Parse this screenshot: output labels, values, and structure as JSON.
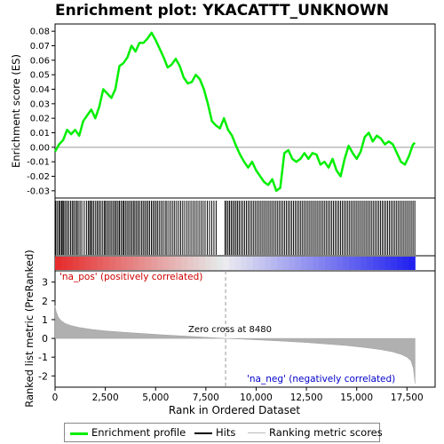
{
  "title": "Enrichment plot: YKACATTT_UNKNOWN",
  "colors": {
    "profile": "#00ee00",
    "hits": "#000000",
    "metric": "#aaaaaa",
    "pos_label": "#cc0000",
    "neg_label": "#0000cc",
    "zero_line": "#999999"
  },
  "chart_data": [
    {
      "type": "line",
      "name": "enrichment-profile",
      "ylabel": "Enrichment score (ES)",
      "ylim": [
        -0.035,
        0.085
      ],
      "xlim": [
        0,
        18900
      ],
      "yticks": [
        -0.03,
        -0.02,
        -0.01,
        0.0,
        0.01,
        0.02,
        0.03,
        0.04,
        0.05,
        0.06,
        0.07,
        0.08
      ],
      "ytick_labels": [
        "-0.03",
        "-0.02",
        "-0.01",
        "0.00",
        "0.01",
        "0.02",
        "0.03",
        "0.04",
        "0.05",
        "0.06",
        "0.07",
        "0.08"
      ],
      "x": [
        0,
        200,
        400,
        600,
        800,
        1000,
        1200,
        1400,
        1600,
        1800,
        2000,
        2200,
        2400,
        2600,
        2800,
        3000,
        3200,
        3400,
        3600,
        3800,
        4000,
        4200,
        4400,
        4600,
        4800,
        5000,
        5200,
        5400,
        5600,
        5800,
        6000,
        6200,
        6400,
        6600,
        6800,
        7000,
        7200,
        7400,
        7600,
        7800,
        8000,
        8200,
        8400,
        8600,
        8800,
        9000,
        9200,
        9400,
        9600,
        9800,
        10000,
        10200,
        10400,
        10600,
        10800,
        11000,
        11200,
        11400,
        11600,
        11800,
        12000,
        12200,
        12400,
        12600,
        12800,
        13000,
        13200,
        13400,
        13600,
        13800,
        14000,
        14200,
        14400,
        14600,
        14800,
        15000,
        15200,
        15400,
        15600,
        15800,
        16000,
        16200,
        16400,
        16600,
        16800,
        17000,
        17200,
        17400,
        17600,
        17800,
        17900
      ],
      "y": [
        -0.003,
        0.002,
        0.005,
        0.012,
        0.009,
        0.012,
        0.008,
        0.018,
        0.022,
        0.026,
        0.02,
        0.028,
        0.04,
        0.037,
        0.034,
        0.04,
        0.056,
        0.058,
        0.062,
        0.07,
        0.066,
        0.072,
        0.072,
        0.075,
        0.079,
        0.074,
        0.068,
        0.062,
        0.055,
        0.057,
        0.061,
        0.056,
        0.048,
        0.044,
        0.045,
        0.05,
        0.047,
        0.04,
        0.03,
        0.018,
        0.015,
        0.013,
        0.02,
        0.012,
        0.008,
        0.001,
        -0.005,
        -0.01,
        -0.014,
        -0.01,
        -0.016,
        -0.02,
        -0.024,
        -0.026,
        -0.022,
        -0.03,
        -0.028,
        -0.004,
        -0.002,
        -0.008,
        -0.01,
        -0.008,
        -0.004,
        -0.008,
        -0.004,
        -0.005,
        -0.012,
        -0.01,
        -0.014,
        -0.008,
        -0.016,
        -0.02,
        -0.008,
        0.001,
        -0.004,
        -0.008,
        -0.003,
        0.007,
        0.01,
        0.004,
        0.008,
        0.006,
        0.002,
        0.004,
        0.002,
        -0.004,
        -0.01,
        -0.012,
        -0.006,
        0.002,
        0.003
      ]
    },
    {
      "type": "table",
      "name": "hits",
      "hit_ranks": [
        40,
        120,
        200,
        260,
        330,
        390,
        440,
        520,
        600,
        680,
        770,
        850,
        920,
        1000,
        1080,
        1150,
        1240,
        1330,
        1450,
        1560,
        1650,
        1720,
        1780,
        1850,
        1930,
        2020,
        2100,
        2180,
        2260,
        2350,
        2440,
        2500,
        2580,
        2660,
        2740,
        2820,
        2900,
        2980,
        3050,
        3130,
        3200,
        3280,
        3360,
        3420,
        3500,
        3580,
        3660,
        3740,
        3820,
        3900,
        3970,
        4050,
        4130,
        4210,
        4300,
        4380,
        4460,
        4540,
        4620,
        4700,
        4790,
        4870,
        4950,
        5030,
        5110,
        5200,
        5290,
        5380,
        5480,
        5560,
        5660,
        5760,
        5860,
        5950,
        6050,
        6150,
        6250,
        6350,
        6450,
        6560,
        6660,
        6760,
        6860,
        6960,
        7060,
        7160,
        7260,
        7360,
        7460,
        7570,
        7680,
        7790,
        7900,
        8010,
        8450,
        8520,
        8600,
        8680,
        8760,
        8840,
        8920,
        9000,
        9080,
        9160,
        9250,
        9340,
        9430,
        9520,
        9610,
        9700,
        9790,
        9880,
        9970,
        10060,
        10150,
        10240,
        10330,
        10420,
        10510,
        10600,
        10690,
        10780,
        10870,
        10960,
        11050,
        11140,
        11230,
        11320,
        11410,
        11500,
        11590,
        11680,
        11770,
        11860,
        11950,
        12040,
        12130,
        12220,
        12310,
        12400,
        12490,
        12580,
        12670,
        12760,
        12850,
        12940,
        13030,
        13120,
        13210,
        13300,
        13390,
        13480,
        13570,
        13660,
        13750,
        13840,
        13930,
        14020,
        14110,
        14200,
        14290,
        14380,
        14470,
        14560,
        14650,
        14740,
        14830,
        14920,
        15010,
        15100,
        15190,
        15280,
        15370,
        15460,
        15550,
        15640,
        15730,
        15820,
        15910,
        16000,
        16090,
        16180,
        16270,
        16360,
        16450,
        16540,
        16630,
        16720,
        16810,
        16900,
        16990,
        17080,
        17170,
        17260,
        17350,
        17440,
        17530,
        17620,
        17710,
        17800,
        17890
      ]
    },
    {
      "type": "area",
      "name": "ranked-list-metric",
      "ylabel": "Ranked list metric (PreRanked)",
      "xlabel": "Rank in Ordered Dataset",
      "ylim": [
        -2.6,
        3.6
      ],
      "xlim": [
        0,
        18900
      ],
      "yticks": [
        -2,
        -1,
        0,
        1,
        2,
        3
      ],
      "ytick_labels": [
        "-2",
        "-1",
        "0",
        "1",
        "2",
        "3"
      ],
      "xticks": [
        0,
        2500,
        5000,
        7500,
        10000,
        12500,
        15000,
        17500
      ],
      "xtick_labels": [
        "0",
        "2,500",
        "5,000",
        "7,500",
        "10,000",
        "12,500",
        "15,000",
        "17,500"
      ],
      "x": [
        0,
        50,
        150,
        300,
        500,
        800,
        1200,
        1800,
        2500,
        3500,
        4500,
        5500,
        6500,
        7500,
        8480,
        9500,
        10500,
        11500,
        12500,
        13500,
        14500,
        15500,
        16200,
        16800,
        17200,
        17500,
        17700,
        17820,
        17900
      ],
      "y": [
        1.75,
        1.45,
        1.15,
        0.95,
        0.8,
        0.68,
        0.58,
        0.48,
        0.4,
        0.32,
        0.25,
        0.18,
        0.12,
        0.06,
        0.0,
        -0.05,
        -0.1,
        -0.16,
        -0.22,
        -0.3,
        -0.38,
        -0.5,
        -0.6,
        -0.72,
        -0.85,
        -1.0,
        -1.2,
        -1.6,
        -2.4
      ],
      "zero_cross_rank": 8480,
      "annotation": "Zero cross at 8480",
      "pos_label": "'na_pos' (positively correlated)",
      "neg_label": "'na_neg' (negatively correlated)"
    }
  ],
  "legend": {
    "profile": "Enrichment profile",
    "hits": "Hits",
    "metric": "Ranking metric scores"
  }
}
